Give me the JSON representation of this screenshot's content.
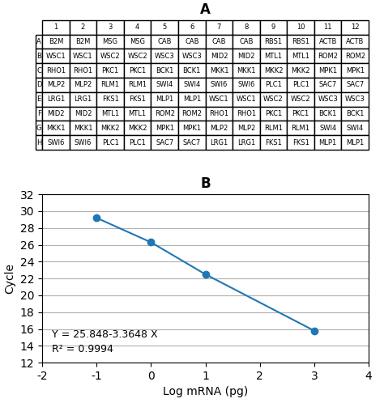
{
  "chart_data": [
    {
      "type": "table",
      "title": "A",
      "columns": [
        "1",
        "2",
        "3",
        "4",
        "5",
        "6",
        "7",
        "8",
        "9",
        "10",
        "11",
        "12"
      ],
      "rows": [
        "A",
        "B",
        "C",
        "D",
        "E",
        "F",
        "G",
        "H"
      ],
      "cells": [
        [
          "B2M",
          "B2M",
          "MSG",
          "MSG",
          "CAB",
          "CAB",
          "CAB",
          "CAB",
          "RBS1",
          "RBS1",
          "ACTB",
          "ACTB"
        ],
        [
          "WSC1",
          "WSC1",
          "WSC2",
          "WSC2",
          "WSC3",
          "WSC3",
          "MID2",
          "MID2",
          "MTL1",
          "MTL1",
          "ROM2",
          "ROM2"
        ],
        [
          "RHO1",
          "RHO1",
          "PKC1",
          "PKC1",
          "BCK1",
          "BCK1",
          "MKK1",
          "MKK1",
          "MKK2",
          "MKK2",
          "MPK1",
          "MPK1"
        ],
        [
          "MLP2",
          "MLP2",
          "RLM1",
          "RLM1",
          "SWI4",
          "SWI4",
          "SWI6",
          "SWI6",
          "PLC1",
          "PLC1",
          "SAC7",
          "SAC7"
        ],
        [
          "LRG1",
          "LRG1",
          "FKS1",
          "FKS1",
          "MLP1",
          "MLP1",
          "WSC1",
          "WSC1",
          "WSC2",
          "WSC2",
          "WSC3",
          "WSC3"
        ],
        [
          "MID2",
          "MID2",
          "MTL1",
          "MTL1",
          "ROM2",
          "ROM2",
          "RHO1",
          "RHO1",
          "PKC1",
          "PKC1",
          "BCK1",
          "BCK1"
        ],
        [
          "MKK1",
          "MKK1",
          "MKK2",
          "MKK2",
          "MPK1",
          "MPK1",
          "MLP2",
          "MLP2",
          "RLM1",
          "RLM1",
          "SWI4",
          "SWI4"
        ],
        [
          "SWI6",
          "SWI6",
          "PLC1",
          "PLC1",
          "SAC7",
          "SAC7",
          "LRG1",
          "LRG1",
          "FKS1",
          "FKS1",
          "MLP1",
          "MLP1"
        ]
      ]
    },
    {
      "type": "line",
      "title": "B",
      "x": [
        -1,
        0,
        1,
        3
      ],
      "values": [
        29.2,
        26.3,
        22.5,
        15.8
      ],
      "marker": "o",
      "line_style": "solid",
      "xlabel": "Log mRNA (pg)",
      "ylabel": "Cycle",
      "xlim": [
        -2,
        4
      ],
      "ylim": [
        12,
        32
      ],
      "xticks": [
        -2,
        -1,
        0,
        1,
        2,
        3,
        4
      ],
      "yticks": [
        12,
        14,
        16,
        18,
        20,
        22,
        24,
        26,
        28,
        30,
        32
      ],
      "grid": "y",
      "annotations": [
        "Y = 25.848-3.3648 X",
        "R² = 0.9994"
      ]
    }
  ]
}
